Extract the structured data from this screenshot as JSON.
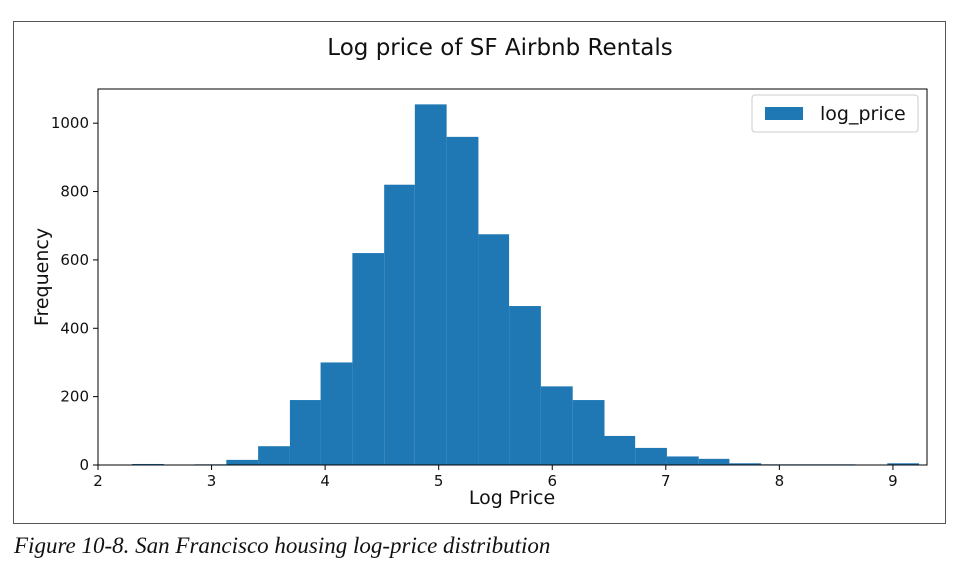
{
  "chart_data": {
    "type": "bar",
    "title": "Log price of SF Airbnb Rentals",
    "xlabel": "Log Price",
    "ylabel": "Frequency",
    "xlim": [
      2.0,
      9.3
    ],
    "ylim": [
      0,
      1100
    ],
    "xticks": [
      2,
      3,
      4,
      5,
      6,
      7,
      8,
      9
    ],
    "yticks": [
      0,
      200,
      400,
      600,
      800,
      1000
    ],
    "bin_width": 0.277,
    "bin_edges": [
      2.3,
      2.58,
      2.85,
      3.13,
      3.41,
      3.69,
      3.96,
      4.24,
      4.52,
      4.79,
      5.07,
      5.35,
      5.62,
      5.9,
      6.18,
      6.46,
      6.73,
      7.01,
      7.29,
      7.56,
      7.84,
      8.12,
      8.4,
      8.67,
      8.95,
      9.23
    ],
    "series": [
      {
        "name": "log_price",
        "color": "#1f77b4",
        "values": [
          3,
          0,
          2,
          15,
          55,
          190,
          300,
          620,
          820,
          1055,
          960,
          675,
          465,
          230,
          190,
          85,
          50,
          25,
          18,
          5,
          2,
          2,
          2,
          0,
          5
        ]
      }
    ],
    "legend": "top-right",
    "grid": false
  },
  "caption": "Figure 10-8. San Francisco housing log-price distribution"
}
